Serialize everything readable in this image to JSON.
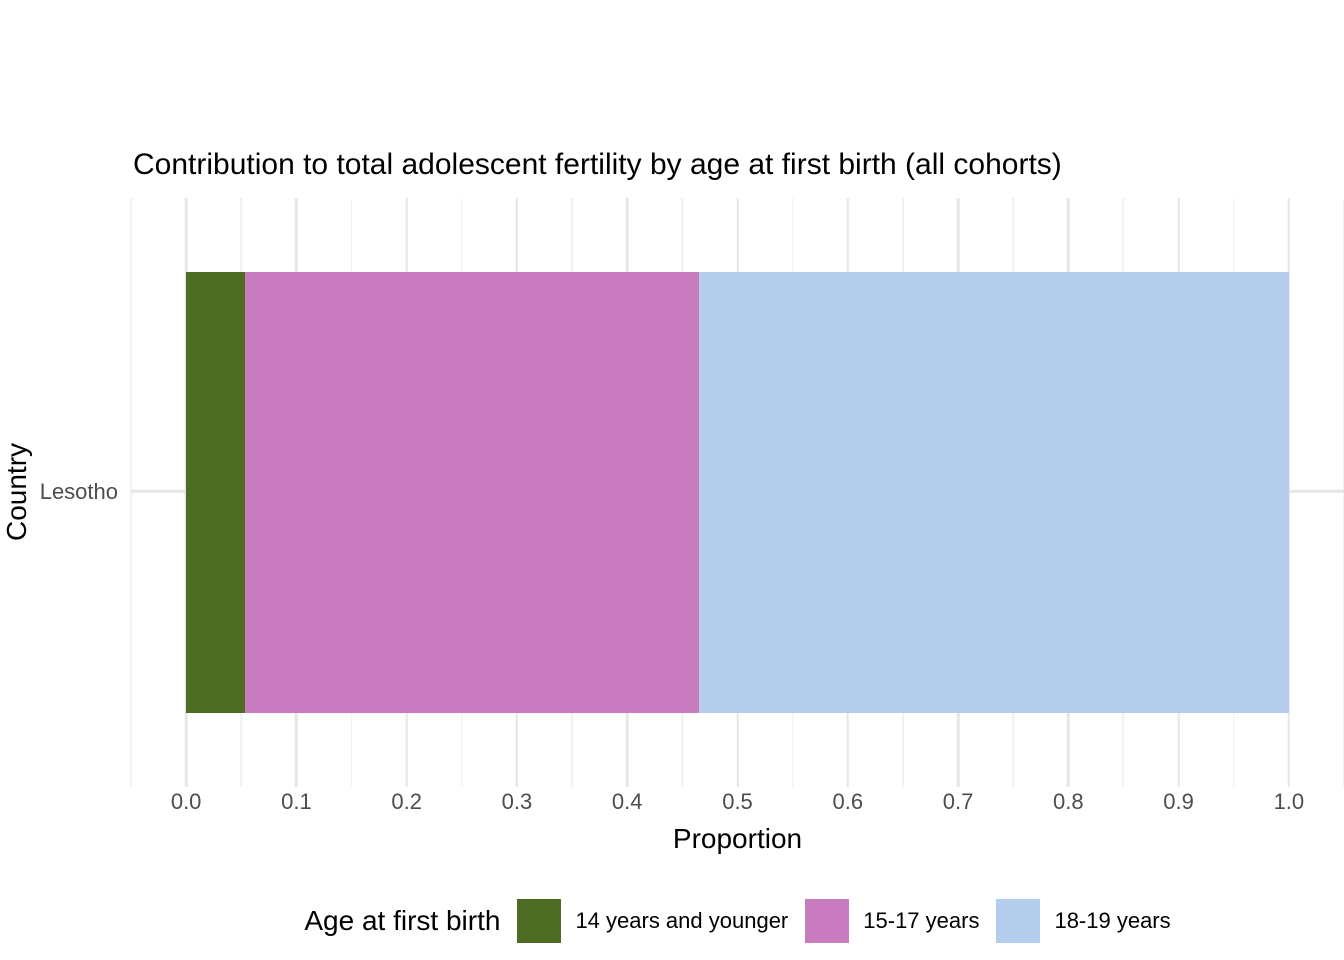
{
  "chart_data": {
    "type": "bar",
    "orientation": "horizontal",
    "stacked": true,
    "title": "Contribution to total adolescent fertility by age at first birth (all cohorts)",
    "xlabel": "Proportion",
    "ylabel": "Country",
    "categories": [
      "Lesotho"
    ],
    "series": [
      {
        "name": "14 years and younger",
        "color": "#4D6B22",
        "values": [
          0.053
        ]
      },
      {
        "name": "15-17 years",
        "color": "#C87BBE",
        "values": [
          0.412
        ]
      },
      {
        "name": "18-19 years",
        "color": "#B5CDEC",
        "values": [
          0.535
        ]
      }
    ],
    "legend_title": "Age at first birth",
    "legend_position": "bottom",
    "xlim": [
      0,
      1
    ],
    "x_ticks": [
      0,
      0.1,
      0.2,
      0.3,
      0.4,
      0.5,
      0.6,
      0.7,
      0.8,
      0.9,
      1
    ],
    "x_tick_labels": [
      "0.0",
      "0.1",
      "0.2",
      "0.3",
      "0.4",
      "0.5",
      "0.6",
      "0.7",
      "0.8",
      "0.9",
      "1.0"
    ],
    "x_minor_ticks": [
      -0.05,
      0.05,
      0.15,
      0.25,
      0.35,
      0.45,
      0.55,
      0.65,
      0.75,
      0.85,
      0.95,
      1.05
    ],
    "panel_domain": [
      -0.05,
      1.05
    ],
    "grid": {
      "vertical": "major+minor",
      "horizontal": "major"
    }
  }
}
